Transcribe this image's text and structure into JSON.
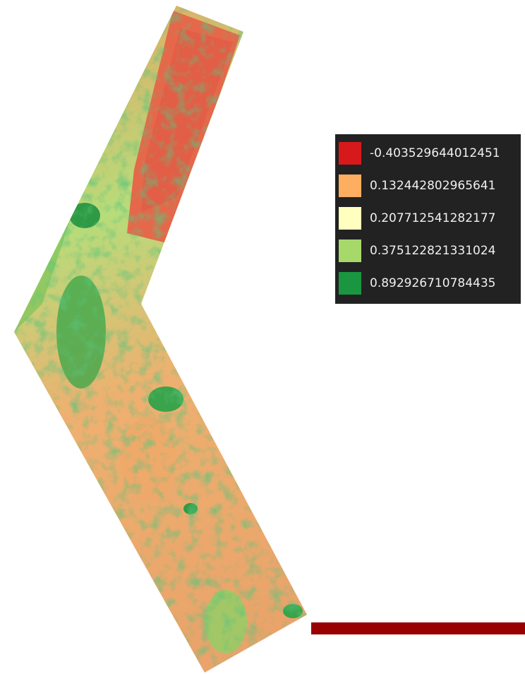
{
  "legend": {
    "items": [
      {
        "label": "-0.403529644012451",
        "color": "#d7191c"
      },
      {
        "label": "0.132442802965641",
        "color": "#fdae61"
      },
      {
        "label": "0.207712541282177",
        "color": "#ffffbf"
      },
      {
        "label": "0.375122821331024",
        "color": "#a6d96a"
      },
      {
        "label": "0.892926710784435",
        "color": "#1a9641"
      }
    ]
  }
}
